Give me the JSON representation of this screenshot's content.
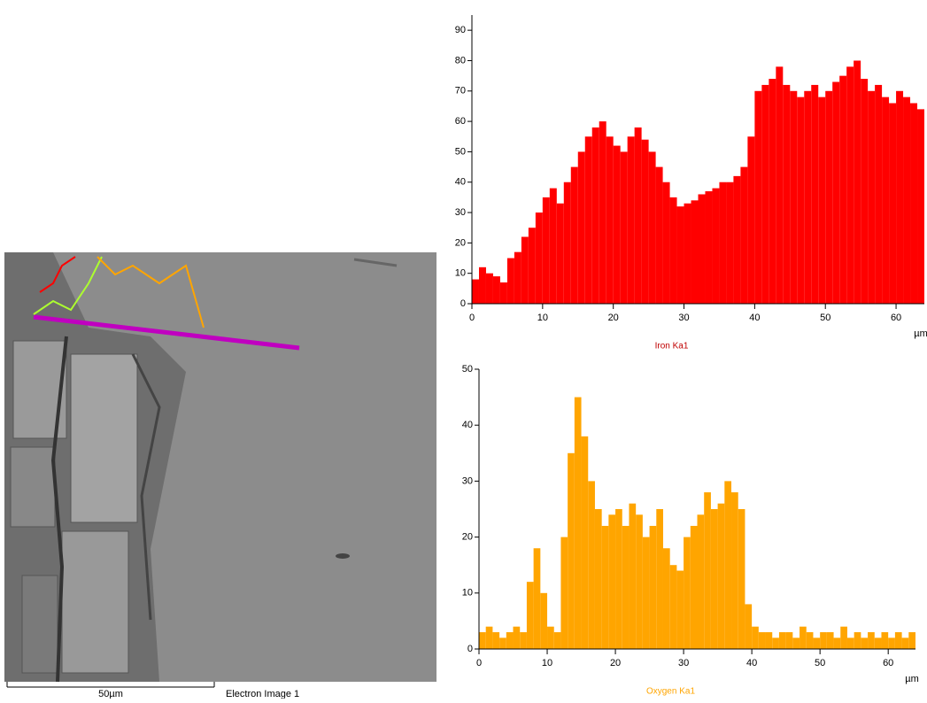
{
  "chart_data": [
    {
      "type": "bar",
      "title": "Iron Ka1",
      "x_unit": "µm",
      "color": "#ff0000",
      "title_color": "#c00000",
      "x": [
        0,
        1,
        2,
        3,
        4,
        5,
        6,
        7,
        8,
        9,
        10,
        11,
        12,
        13,
        14,
        15,
        16,
        17,
        18,
        19,
        20,
        21,
        22,
        23,
        24,
        25,
        26,
        27,
        28,
        29,
        30,
        31,
        32,
        33,
        34,
        35,
        36,
        37,
        38,
        39,
        40,
        41,
        42,
        43,
        44,
        45,
        46,
        47,
        48,
        49,
        50,
        51,
        52,
        53,
        54,
        55,
        56,
        57,
        58,
        59,
        60,
        61,
        62,
        63,
        64
      ],
      "values": [
        8,
        12,
        10,
        9,
        7,
        15,
        17,
        22,
        25,
        30,
        35,
        38,
        33,
        40,
        45,
        50,
        55,
        58,
        60,
        55,
        52,
        50,
        55,
        58,
        54,
        50,
        45,
        40,
        35,
        32,
        33,
        34,
        36,
        37,
        38,
        40,
        40,
        42,
        45,
        55,
        70,
        72,
        74,
        78,
        72,
        70,
        68,
        70,
        72,
        68,
        70,
        73,
        75,
        78,
        80,
        74,
        70,
        72,
        68,
        66,
        70,
        68,
        66,
        64,
        66
      ],
      "xlim": [
        0,
        64
      ],
      "ylim": [
        0,
        95
      ],
      "xticks": [
        0,
        10,
        20,
        30,
        40,
        50,
        60
      ],
      "yticks": [
        0,
        10,
        20,
        30,
        40,
        50,
        60,
        70,
        80,
        90
      ]
    },
    {
      "type": "bar",
      "title": "Oxygen Ka1",
      "x_unit": "µm",
      "color": "#ffa500",
      "title_color": "#ffa500",
      "x": [
        0,
        1,
        2,
        3,
        4,
        5,
        6,
        7,
        8,
        9,
        10,
        11,
        12,
        13,
        14,
        15,
        16,
        17,
        18,
        19,
        20,
        21,
        22,
        23,
        24,
        25,
        26,
        27,
        28,
        29,
        30,
        31,
        32,
        33,
        34,
        35,
        36,
        37,
        38,
        39,
        40,
        41,
        42,
        43,
        44,
        45,
        46,
        47,
        48,
        49,
        50,
        51,
        52,
        53,
        54,
        55,
        56,
        57,
        58,
        59,
        60,
        61,
        62,
        63,
        64
      ],
      "values": [
        3,
        4,
        3,
        2,
        3,
        4,
        3,
        12,
        18,
        10,
        4,
        3,
        20,
        35,
        45,
        38,
        30,
        25,
        22,
        24,
        25,
        22,
        26,
        24,
        20,
        22,
        25,
        18,
        15,
        14,
        20,
        22,
        24,
        28,
        25,
        26,
        30,
        28,
        25,
        8,
        4,
        3,
        3,
        2,
        3,
        3,
        2,
        4,
        3,
        2,
        3,
        3,
        2,
        4,
        2,
        3,
        2,
        3,
        2,
        3,
        2,
        3,
        2,
        3,
        3
      ],
      "xlim": [
        0,
        64
      ],
      "ylim": [
        0,
        50
      ],
      "xticks": [
        0,
        10,
        20,
        30,
        40,
        50,
        60
      ],
      "yticks": [
        0,
        10,
        20,
        30,
        40,
        50
      ]
    }
  ],
  "image": {
    "scale_bar": "50µm",
    "caption": "Electron Image 1"
  }
}
